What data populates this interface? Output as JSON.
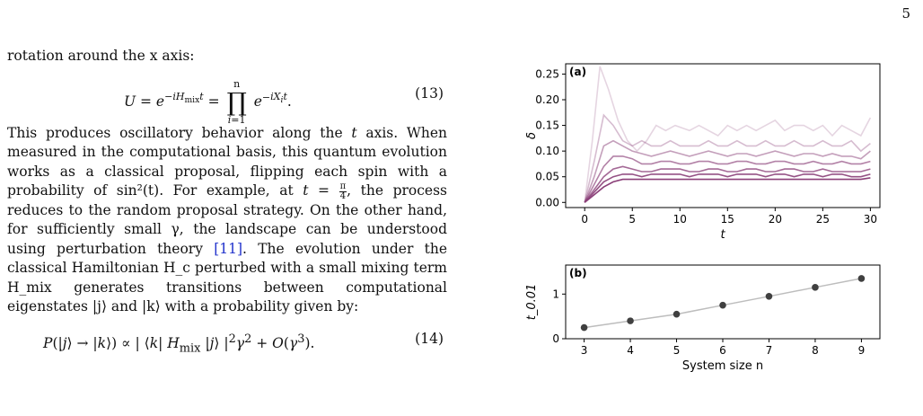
{
  "page": {
    "number": "5"
  },
  "text": {
    "lead": "rotation around the x axis:",
    "eq13_number": "(13)",
    "eq14_number": "(14)",
    "para_1": "This produces oscillatory behavior along the",
    "para_2": "axis. When measured in the computational basis, this quantum evolution works as a classical proposal, flipping each spin with a probability of sin²(t). For example, at",
    "para_3": ", the process reduces to the random proposal strategy. On the other hand, for sufficiently small γ, the landscape can be understood using perturbation theory",
    "citation": "[11]",
    "para_4": ". The evolution under the classical Hamiltonian H_c perturbed with a small mixing term H_mix generates transitions between computational eigenstates |j⟩ and |k⟩ with a probability given by:"
  },
  "colors": {
    "link": "#2233cc",
    "curve": "#8a3f78",
    "marker": "#404040",
    "trend": "#bdbdbd"
  },
  "chart_data": [
    {
      "panel_label": "(a)",
      "type": "line",
      "xlabel": "t",
      "ylabel": "δ",
      "xlim": [
        -2,
        31
      ],
      "ylim": [
        -0.01,
        0.27
      ],
      "xticks": [
        0,
        5,
        10,
        15,
        20,
        25,
        30
      ],
      "yticks": [
        0.0,
        0.05,
        0.1,
        0.15,
        0.2,
        0.25
      ],
      "ytick_labels": [
        "0.00",
        "0.05",
        "0.10",
        "0.15",
        "0.20",
        "0.25"
      ],
      "series": [
        {
          "opacity": 0.22,
          "points": [
            [
              0,
              0
            ],
            [
              0.8,
              0.12
            ],
            [
              1.6,
              0.265
            ],
            [
              2.5,
              0.22
            ],
            [
              3.5,
              0.16
            ],
            [
              4.5,
              0.12
            ],
            [
              5.5,
              0.1
            ],
            [
              6.5,
              0.12
            ],
            [
              7.5,
              0.15
            ],
            [
              8.5,
              0.14
            ],
            [
              9.5,
              0.15
            ],
            [
              11,
              0.14
            ],
            [
              12,
              0.15
            ],
            [
              13,
              0.14
            ],
            [
              14,
              0.13
            ],
            [
              15,
              0.15
            ],
            [
              16,
              0.14
            ],
            [
              17,
              0.15
            ],
            [
              18,
              0.14
            ],
            [
              19,
              0.15
            ],
            [
              20,
              0.16
            ],
            [
              21,
              0.14
            ],
            [
              22,
              0.15
            ],
            [
              23,
              0.15
            ],
            [
              24,
              0.14
            ],
            [
              25,
              0.15
            ],
            [
              26,
              0.13
            ],
            [
              27,
              0.15
            ],
            [
              28,
              0.14
            ],
            [
              29,
              0.13
            ],
            [
              30,
              0.165
            ]
          ]
        },
        {
          "opacity": 0.35,
          "points": [
            [
              0,
              0
            ],
            [
              1,
              0.08
            ],
            [
              2,
              0.17
            ],
            [
              3,
              0.15
            ],
            [
              4,
              0.12
            ],
            [
              5,
              0.11
            ],
            [
              6,
              0.12
            ],
            [
              7,
              0.11
            ],
            [
              8,
              0.11
            ],
            [
              9,
              0.12
            ],
            [
              10,
              0.11
            ],
            [
              11,
              0.11
            ],
            [
              12,
              0.11
            ],
            [
              13,
              0.12
            ],
            [
              14,
              0.11
            ],
            [
              15,
              0.11
            ],
            [
              16,
              0.12
            ],
            [
              17,
              0.11
            ],
            [
              18,
              0.11
            ],
            [
              19,
              0.12
            ],
            [
              20,
              0.11
            ],
            [
              21,
              0.11
            ],
            [
              22,
              0.12
            ],
            [
              23,
              0.11
            ],
            [
              24,
              0.11
            ],
            [
              25,
              0.12
            ],
            [
              26,
              0.11
            ],
            [
              27,
              0.11
            ],
            [
              28,
              0.12
            ],
            [
              29,
              0.1
            ],
            [
              30,
              0.115
            ]
          ]
        },
        {
          "opacity": 0.5,
          "points": [
            [
              0,
              0
            ],
            [
              1,
              0.05
            ],
            [
              2,
              0.11
            ],
            [
              3,
              0.12
            ],
            [
              4,
              0.11
            ],
            [
              5,
              0.1
            ],
            [
              6,
              0.095
            ],
            [
              7,
              0.09
            ],
            [
              8,
              0.095
            ],
            [
              9,
              0.1
            ],
            [
              10,
              0.095
            ],
            [
              11,
              0.09
            ],
            [
              12,
              0.095
            ],
            [
              13,
              0.1
            ],
            [
              14,
              0.095
            ],
            [
              15,
              0.09
            ],
            [
              16,
              0.095
            ],
            [
              17,
              0.095
            ],
            [
              18,
              0.09
            ],
            [
              19,
              0.095
            ],
            [
              20,
              0.1
            ],
            [
              21,
              0.095
            ],
            [
              22,
              0.09
            ],
            [
              23,
              0.095
            ],
            [
              24,
              0.095
            ],
            [
              25,
              0.09
            ],
            [
              26,
              0.095
            ],
            [
              27,
              0.09
            ],
            [
              28,
              0.09
            ],
            [
              29,
              0.085
            ],
            [
              30,
              0.1
            ]
          ]
        },
        {
          "opacity": 0.65,
          "points": [
            [
              0,
              0
            ],
            [
              1,
              0.035
            ],
            [
              2,
              0.07
            ],
            [
              3,
              0.09
            ],
            [
              4,
              0.09
            ],
            [
              5,
              0.085
            ],
            [
              6,
              0.075
            ],
            [
              7,
              0.075
            ],
            [
              8,
              0.08
            ],
            [
              9,
              0.08
            ],
            [
              10,
              0.075
            ],
            [
              11,
              0.075
            ],
            [
              12,
              0.08
            ],
            [
              13,
              0.08
            ],
            [
              14,
              0.075
            ],
            [
              15,
              0.075
            ],
            [
              16,
              0.08
            ],
            [
              17,
              0.08
            ],
            [
              18,
              0.075
            ],
            [
              19,
              0.075
            ],
            [
              20,
              0.08
            ],
            [
              21,
              0.08
            ],
            [
              22,
              0.075
            ],
            [
              23,
              0.075
            ],
            [
              24,
              0.08
            ],
            [
              25,
              0.075
            ],
            [
              26,
              0.075
            ],
            [
              27,
              0.08
            ],
            [
              28,
              0.075
            ],
            [
              29,
              0.075
            ],
            [
              30,
              0.08
            ]
          ]
        },
        {
          "opacity": 0.78,
          "points": [
            [
              0,
              0
            ],
            [
              1,
              0.025
            ],
            [
              2,
              0.05
            ],
            [
              3,
              0.065
            ],
            [
              4,
              0.07
            ],
            [
              5,
              0.065
            ],
            [
              6,
              0.06
            ],
            [
              7,
              0.06
            ],
            [
              8,
              0.065
            ],
            [
              9,
              0.065
            ],
            [
              10,
              0.065
            ],
            [
              11,
              0.06
            ],
            [
              12,
              0.06
            ],
            [
              13,
              0.065
            ],
            [
              14,
              0.065
            ],
            [
              15,
              0.06
            ],
            [
              16,
              0.06
            ],
            [
              17,
              0.065
            ],
            [
              18,
              0.065
            ],
            [
              19,
              0.06
            ],
            [
              20,
              0.06
            ],
            [
              21,
              0.065
            ],
            [
              22,
              0.065
            ],
            [
              23,
              0.06
            ],
            [
              24,
              0.06
            ],
            [
              25,
              0.065
            ],
            [
              26,
              0.06
            ],
            [
              27,
              0.06
            ],
            [
              28,
              0.06
            ],
            [
              29,
              0.06
            ],
            [
              30,
              0.065
            ]
          ]
        },
        {
          "opacity": 0.9,
          "points": [
            [
              0,
              0
            ],
            [
              1,
              0.02
            ],
            [
              2,
              0.04
            ],
            [
              3,
              0.05
            ],
            [
              4,
              0.055
            ],
            [
              5,
              0.055
            ],
            [
              6,
              0.05
            ],
            [
              7,
              0.055
            ],
            [
              8,
              0.055
            ],
            [
              9,
              0.055
            ],
            [
              10,
              0.055
            ],
            [
              11,
              0.05
            ],
            [
              12,
              0.055
            ],
            [
              13,
              0.055
            ],
            [
              14,
              0.055
            ],
            [
              15,
              0.05
            ],
            [
              16,
              0.055
            ],
            [
              17,
              0.055
            ],
            [
              18,
              0.055
            ],
            [
              19,
              0.05
            ],
            [
              20,
              0.055
            ],
            [
              21,
              0.055
            ],
            [
              22,
              0.05
            ],
            [
              23,
              0.055
            ],
            [
              24,
              0.055
            ],
            [
              25,
              0.05
            ],
            [
              26,
              0.055
            ],
            [
              27,
              0.055
            ],
            [
              28,
              0.05
            ],
            [
              29,
              0.05
            ],
            [
              30,
              0.055
            ]
          ]
        },
        {
          "opacity": 1.0,
          "points": [
            [
              0,
              0
            ],
            [
              1,
              0.015
            ],
            [
              2,
              0.03
            ],
            [
              3,
              0.04
            ],
            [
              4,
              0.045
            ],
            [
              5,
              0.045
            ],
            [
              6,
              0.045
            ],
            [
              7,
              0.045
            ],
            [
              8,
              0.045
            ],
            [
              9,
              0.045
            ],
            [
              10,
              0.045
            ],
            [
              11,
              0.045
            ],
            [
              12,
              0.045
            ],
            [
              13,
              0.045
            ],
            [
              14,
              0.045
            ],
            [
              15,
              0.045
            ],
            [
              16,
              0.045
            ],
            [
              17,
              0.045
            ],
            [
              18,
              0.045
            ],
            [
              19,
              0.045
            ],
            [
              20,
              0.045
            ],
            [
              21,
              0.045
            ],
            [
              22,
              0.045
            ],
            [
              23,
              0.045
            ],
            [
              24,
              0.045
            ],
            [
              25,
              0.045
            ],
            [
              26,
              0.045
            ],
            [
              27,
              0.045
            ],
            [
              28,
              0.045
            ],
            [
              29,
              0.045
            ],
            [
              30,
              0.048
            ]
          ]
        }
      ]
    },
    {
      "panel_label": "(b)",
      "type": "line",
      "xlabel": "System size n",
      "ylabel": "t_0.01",
      "xlim": [
        2.6,
        9.4
      ],
      "ylim": [
        0,
        1.65
      ],
      "xticks": [
        3,
        4,
        5,
        6,
        7,
        8,
        9
      ],
      "yticks": [
        0,
        1
      ],
      "ytick_labels": [
        "0",
        "1"
      ],
      "x": [
        3,
        4,
        5,
        6,
        7,
        8,
        9
      ],
      "values": [
        0.25,
        0.4,
        0.55,
        0.75,
        0.95,
        1.15,
        1.35
      ]
    }
  ]
}
